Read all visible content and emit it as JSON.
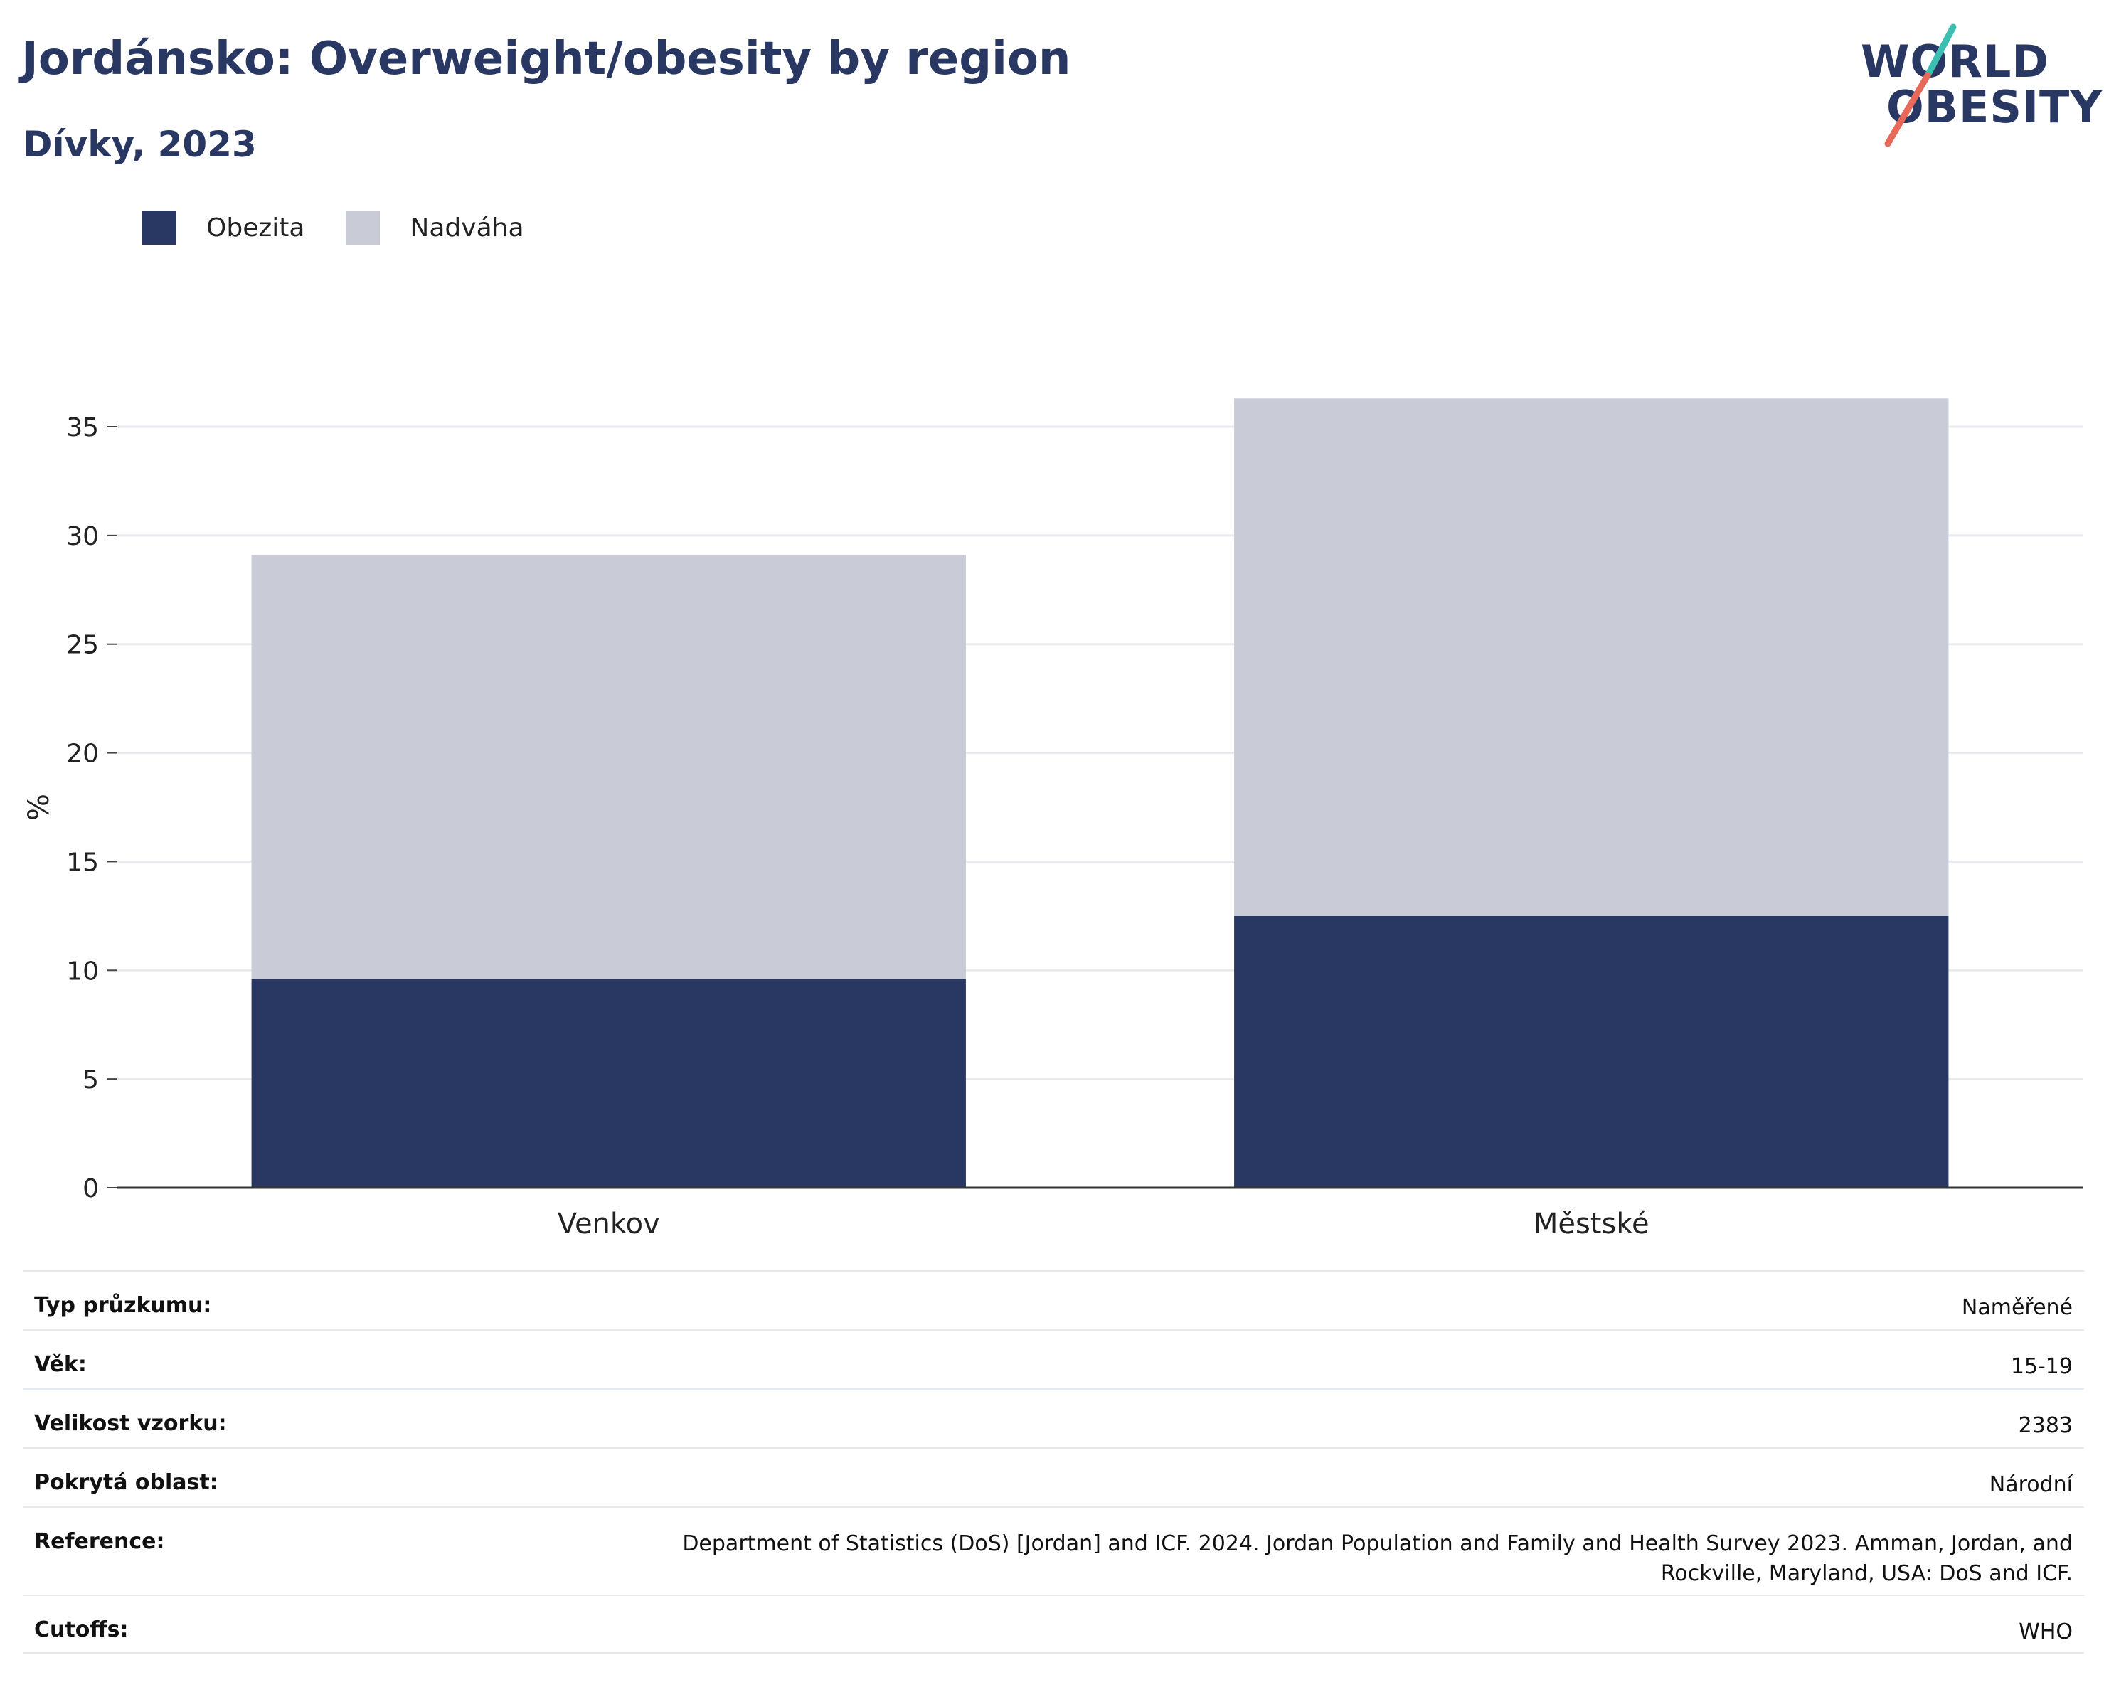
{
  "header": {
    "title": "Jordánsko: Overweight/obesity by region",
    "subtitle": "Dívky, 2023"
  },
  "logo": {
    "line1": "WORLD",
    "line2": "OBESITY",
    "accent_teal": "#3bbfb3",
    "accent_coral": "#e8685a"
  },
  "legend": [
    {
      "label": "Obezita",
      "color": "#293763"
    },
    {
      "label": "Nadváha",
      "color": "#c9cbd6"
    }
  ],
  "chart_data": {
    "type": "bar",
    "stacked": true,
    "categories": [
      "Venkov",
      "Městské"
    ],
    "series": [
      {
        "name": "Obezita",
        "values": [
          9.6,
          12.5
        ],
        "color": "#293763"
      },
      {
        "name": "Nadváha",
        "values": [
          19.5,
          23.8
        ],
        "color": "#c9cbd6"
      }
    ],
    "ylabel": "%",
    "ylim": [
      0,
      36.5
    ],
    "yticks": [
      0,
      5,
      10,
      15,
      20,
      25,
      30,
      35
    ],
    "grid": true,
    "legend_position": "top-left"
  },
  "info": [
    {
      "key": "Typ průzkumu:",
      "value": "Naměřené"
    },
    {
      "key": "Věk:",
      "value": "15-19"
    },
    {
      "key": "Velikost vzorku:",
      "value": "2383"
    },
    {
      "key": "Pokrytá oblast:",
      "value": "Národní"
    },
    {
      "key": "Reference:",
      "value": "Department of Statistics (DoS) [Jordan] and ICF. 2024. Jordan Population and Family and Health Survey 2023. Amman, Jordan, and Rockville, Maryland, USA: DoS and ICF."
    },
    {
      "key": "Cutoffs:",
      "value": "WHO"
    }
  ]
}
